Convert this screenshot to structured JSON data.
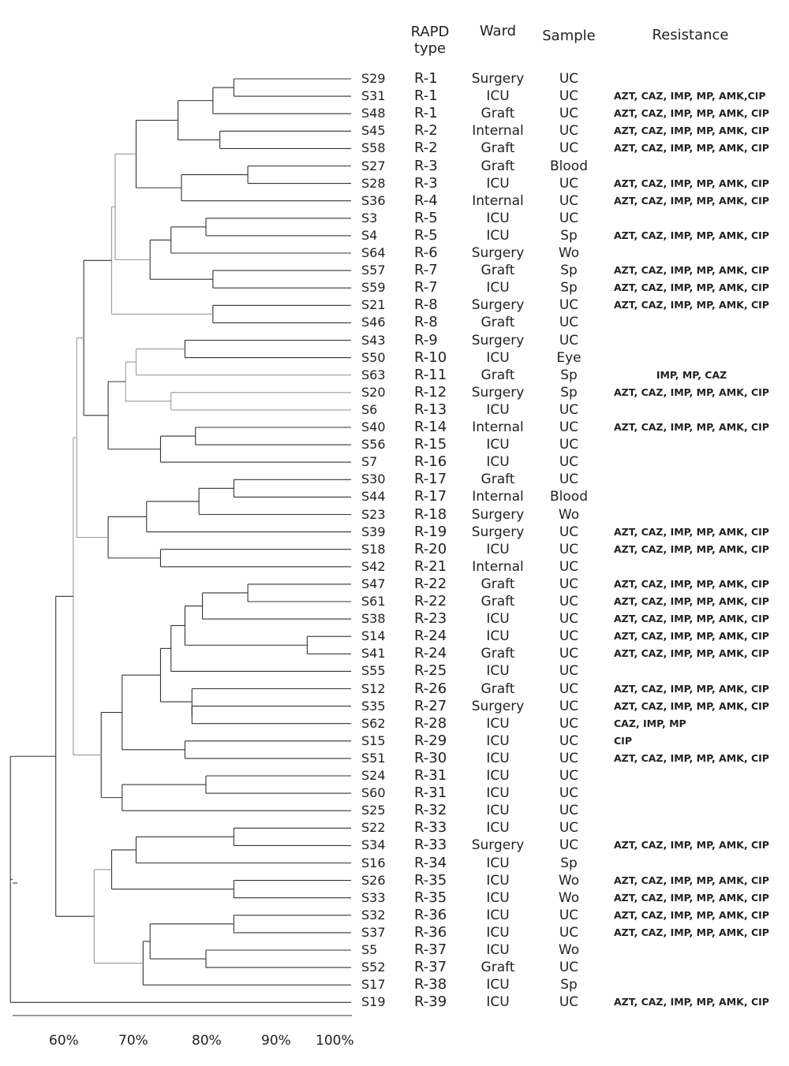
{
  "headers": {
    "rapd": "RAPD type",
    "ward": "Ward",
    "sample": "Sample",
    "resistance": "Resistance"
  },
  "axis": {
    "ticks": [
      "60%",
      "70%",
      "80%",
      "90%",
      "100%"
    ]
  },
  "rows": [
    {
      "id": "S29",
      "rapd": "R-1",
      "ward": "Surgery",
      "sample": "UC",
      "resistance": ""
    },
    {
      "id": "S31",
      "rapd": "R-1",
      "ward": "ICU",
      "sample": "UC",
      "resistance": "AZT, CAZ, IMP, MP, AMK,CIP"
    },
    {
      "id": "S48",
      "rapd": "R-1",
      "ward": "Graft",
      "sample": "UC",
      "resistance": "AZT, CAZ, IMP, MP, AMK, CIP"
    },
    {
      "id": "S45",
      "rapd": "R-2",
      "ward": "Internal",
      "sample": "UC",
      "resistance": "AZT, CAZ, IMP, MP, AMK, CIP"
    },
    {
      "id": "S58",
      "rapd": "R-2",
      "ward": "Graft",
      "sample": "UC",
      "resistance": "AZT, CAZ, IMP, MP, AMK, CIP"
    },
    {
      "id": "S27",
      "rapd": "R-3",
      "ward": "Graft",
      "sample": "Blood",
      "resistance": ""
    },
    {
      "id": "S28",
      "rapd": "R-3",
      "ward": "ICU",
      "sample": "UC",
      "resistance": "AZT, CAZ, IMP, MP, AMK, CIP"
    },
    {
      "id": "S36",
      "rapd": "R-4",
      "ward": "Internal",
      "sample": "UC",
      "resistance": "AZT, CAZ, IMP, MP, AMK, CIP"
    },
    {
      "id": "S3",
      "rapd": "R-5",
      "ward": "ICU",
      "sample": "UC",
      "resistance": ""
    },
    {
      "id": "S4",
      "rapd": "R-5",
      "ward": "ICU",
      "sample": "Sp",
      "resistance": "AZT, CAZ, IMP, MP, AMK, CIP"
    },
    {
      "id": "S64",
      "rapd": "R-6",
      "ward": "Surgery",
      "sample": "Wo",
      "resistance": ""
    },
    {
      "id": "S57",
      "rapd": "R-7",
      "ward": "Graft",
      "sample": "Sp",
      "resistance": "AZT, CAZ, IMP, MP, AMK, CIP"
    },
    {
      "id": "S59",
      "rapd": "R-7",
      "ward": "ICU",
      "sample": "Sp",
      "resistance": "AZT, CAZ, IMP, MP, AMK, CIP"
    },
    {
      "id": "S21",
      "rapd": "R-8",
      "ward": "Surgery",
      "sample": "UC",
      "resistance": "AZT, CAZ, IMP, MP, AMK, CIP"
    },
    {
      "id": "S46",
      "rapd": "R-8",
      "ward": "Graft",
      "sample": "UC",
      "resistance": ""
    },
    {
      "id": "S43",
      "rapd": "R-9",
      "ward": "Surgery",
      "sample": "UC",
      "resistance": ""
    },
    {
      "id": "S50",
      "rapd": "R-10",
      "ward": "ICU",
      "sample": "Eye",
      "resistance": ""
    },
    {
      "id": "S63",
      "rapd": "R-11",
      "ward": "Graft",
      "sample": "Sp",
      "resistance": "IMP, MP, CAZ",
      "center": true
    },
    {
      "id": "S20",
      "rapd": "R-12",
      "ward": "Surgery",
      "sample": "Sp",
      "resistance": "AZT, CAZ, IMP, MP, AMK, CIP"
    },
    {
      "id": "S6",
      "rapd": "R-13",
      "ward": "ICU",
      "sample": "UC",
      "resistance": ""
    },
    {
      "id": "S40",
      "rapd": "R-14",
      "ward": "Internal",
      "sample": "UC",
      "resistance": "AZT, CAZ, IMP, MP, AMK, CIP"
    },
    {
      "id": "S56",
      "rapd": "R-15",
      "ward": "ICU",
      "sample": "UC",
      "resistance": ""
    },
    {
      "id": "S7",
      "rapd": "R-16",
      "ward": "ICU",
      "sample": "UC",
      "resistance": ""
    },
    {
      "id": "S30",
      "rapd": "R-17",
      "ward": "Graft",
      "sample": "UC",
      "resistance": ""
    },
    {
      "id": "S44",
      "rapd": "R-17",
      "ward": "Internal",
      "sample": "Blood",
      "resistance": ""
    },
    {
      "id": "S23",
      "rapd": "R-18",
      "ward": "Surgery",
      "sample": "Wo",
      "resistance": ""
    },
    {
      "id": "S39",
      "rapd": "R-19",
      "ward": "Surgery",
      "sample": "UC",
      "resistance": "AZT, CAZ, IMP, MP, AMK, CIP"
    },
    {
      "id": "S18",
      "rapd": "R-20",
      "ward": "ICU",
      "sample": "UC",
      "resistance": "AZT, CAZ, IMP, MP, AMK, CIP"
    },
    {
      "id": "S42",
      "rapd": "R-21",
      "ward": "Internal",
      "sample": "UC",
      "resistance": ""
    },
    {
      "id": "S47",
      "rapd": "R-22",
      "ward": "Graft",
      "sample": "UC",
      "resistance": "AZT, CAZ, IMP, MP, AMK, CIP"
    },
    {
      "id": "S61",
      "rapd": "R-22",
      "ward": "Graft",
      "sample": "UC",
      "resistance": "AZT, CAZ, IMP, MP, AMK, CIP"
    },
    {
      "id": "S38",
      "rapd": "R-23",
      "ward": "ICU",
      "sample": "UC",
      "resistance": "AZT, CAZ, IMP, MP, AMK, CIP"
    },
    {
      "id": "S14",
      "rapd": "R-24",
      "ward": "ICU",
      "sample": "UC",
      "resistance": "AZT, CAZ, IMP, MP, AMK, CIP"
    },
    {
      "id": "S41",
      "rapd": "R-24",
      "ward": "Graft",
      "sample": "UC",
      "resistance": "AZT, CAZ, IMP, MP, AMK, CIP"
    },
    {
      "id": "S55",
      "rapd": "R-25",
      "ward": "ICU",
      "sample": "UC",
      "resistance": ""
    },
    {
      "id": "S12",
      "rapd": "R-26",
      "ward": "Graft",
      "sample": "UC",
      "resistance": "AZT, CAZ, IMP, MP, AMK, CIP"
    },
    {
      "id": "S35",
      "rapd": "R-27",
      "ward": "Surgery",
      "sample": "UC",
      "resistance": "AZT, CAZ, IMP, MP, AMK, CIP"
    },
    {
      "id": "S62",
      "rapd": "R-28",
      "ward": "ICU",
      "sample": "UC",
      "resistance": "CAZ, IMP, MP"
    },
    {
      "id": "S15",
      "rapd": "R-29",
      "ward": "ICU",
      "sample": "UC",
      "resistance": "CIP"
    },
    {
      "id": "S51",
      "rapd": "R-30",
      "ward": "ICU",
      "sample": "UC",
      "resistance": "AZT, CAZ, IMP, MP, AMK, CIP"
    },
    {
      "id": "S24",
      "rapd": "R-31",
      "ward": "ICU",
      "sample": "UC",
      "resistance": ""
    },
    {
      "id": "S60",
      "rapd": "R-31",
      "ward": "ICU",
      "sample": "UC",
      "resistance": ""
    },
    {
      "id": "S25",
      "rapd": "R-32",
      "ward": "ICU",
      "sample": "UC",
      "resistance": ""
    },
    {
      "id": "S22",
      "rapd": "R-33",
      "ward": "ICU",
      "sample": "UC",
      "resistance": ""
    },
    {
      "id": "S34",
      "rapd": "R-33",
      "ward": "Surgery",
      "sample": "UC",
      "resistance": "AZT, CAZ, IMP, MP, AMK, CIP"
    },
    {
      "id": "S16",
      "rapd": "R-34",
      "ward": "ICU",
      "sample": "Sp",
      "resistance": ""
    },
    {
      "id": "S26",
      "rapd": "R-35",
      "ward": "ICU",
      "sample": "Wo",
      "resistance": "AZT, CAZ, IMP, MP, AMK, CIP"
    },
    {
      "id": "S33",
      "rapd": "R-35",
      "ward": "ICU",
      "sample": "Wo",
      "resistance": "AZT, CAZ, IMP, MP, AMK, CIP"
    },
    {
      "id": "S32",
      "rapd": "R-36",
      "ward": "ICU",
      "sample": "UC",
      "resistance": "AZT, CAZ, IMP, MP, AMK, CIP"
    },
    {
      "id": "S37",
      "rapd": "R-36",
      "ward": "ICU",
      "sample": "UC",
      "resistance": "AZT, CAZ, IMP, MP, AMK, CIP"
    },
    {
      "id": "S5",
      "rapd": "R-37",
      "ward": "ICU",
      "sample": "Wo",
      "resistance": ""
    },
    {
      "id": "S52",
      "rapd": "R-37",
      "ward": "Graft",
      "sample": "UC",
      "resistance": ""
    },
    {
      "id": "S17",
      "rapd": "R-38",
      "ward": "ICU",
      "sample": "Sp",
      "resistance": ""
    },
    {
      "id": "S19",
      "rapd": "R-39",
      "ward": "ICU",
      "sample": "UC",
      "resistance": "AZT, CAZ, IMP, MP, AMK, CIP"
    }
  ],
  "dendrogram": {
    "similarity_unit": "%",
    "merges": [
      {
        "pair": [
          "S29",
          "S31"
        ],
        "similarity": 84
      },
      {
        "pair": [
          "S29-S31",
          "S48"
        ],
        "similarity": 81
      },
      {
        "pair": [
          "S45",
          "S58"
        ],
        "similarity": 82
      },
      {
        "pair": [
          "R1-cluster",
          "R2-cluster"
        ],
        "similarity": 76
      },
      {
        "pair": [
          "S27",
          "S28"
        ],
        "similarity": 86
      },
      {
        "pair": [
          "S27-S28",
          "S36"
        ],
        "similarity": 76.5
      },
      {
        "pair": [
          "S29..S58",
          "S27..S36"
        ],
        "similarity": 70
      },
      {
        "pair": [
          "S3",
          "S4"
        ],
        "similarity": 80
      },
      {
        "pair": [
          "S3-S4",
          "S64"
        ],
        "similarity": 75
      },
      {
        "pair": [
          "S57",
          "S59"
        ],
        "similarity": 81
      },
      {
        "pair": [
          "S3..S64",
          "S57-S59"
        ],
        "similarity": 72
      },
      {
        "pair": [
          "S29..S36",
          "S3..S59"
        ],
        "similarity": 67
      },
      {
        "pair": [
          "S21",
          "S46"
        ],
        "similarity": 81
      },
      {
        "pair": [
          "upper-block",
          "S21-S46"
        ],
        "similarity": 66.5
      },
      {
        "pair": [
          "S43",
          "S50"
        ],
        "similarity": 77
      },
      {
        "pair": [
          "S43-S50",
          "S63"
        ],
        "similarity": 70
      },
      {
        "pair": [
          "S20",
          "S6"
        ],
        "similarity": 75
      },
      {
        "pair": [
          "S43..S63",
          "S20-S6"
        ],
        "similarity": 68.5
      },
      {
        "pair": [
          "S40",
          "S56"
        ],
        "similarity": 78.5
      },
      {
        "pair": [
          "S40-S56",
          "S7"
        ],
        "similarity": 73.5
      },
      {
        "pair": [
          "S43..S6",
          "S40..S7"
        ],
        "similarity": 66
      },
      {
        "pair": [
          "upper-block",
          "S43..S7"
        ],
        "similarity": 62.5
      },
      {
        "pair": [
          "S30",
          "S44"
        ],
        "similarity": 84
      },
      {
        "pair": [
          "S30-S44",
          "S23"
        ],
        "similarity": 79
      },
      {
        "pair": [
          "S30..S23",
          "S39"
        ],
        "similarity": 71.5
      },
      {
        "pair": [
          "S18",
          "S42"
        ],
        "similarity": 73.5
      },
      {
        "pair": [
          "S30..S39",
          "S18-S42"
        ],
        "similarity": 66
      },
      {
        "pair": [
          "upper",
          "S30..S42"
        ],
        "similarity": 61.5
      },
      {
        "pair": [
          "S47",
          "S61"
        ],
        "similarity": 86
      },
      {
        "pair": [
          "S47-S61",
          "S38"
        ],
        "similarity": 79.5
      },
      {
        "pair": [
          "S14",
          "S41"
        ],
        "similarity": 94.5
      },
      {
        "pair": [
          "S47..S38",
          "S14-S41"
        ],
        "similarity": 77
      },
      {
        "pair": [
          "S47..S41",
          "S55"
        ],
        "similarity": 75
      },
      {
        "pair": [
          "S35",
          "S62"
        ],
        "similarity": 78
      },
      {
        "pair": [
          "S12",
          "S35-S62"
        ],
        "similarity": 78
      },
      {
        "pair": [
          "S47..S55",
          "S12..S62"
        ],
        "similarity": 73.5
      },
      {
        "pair": [
          "S15",
          "S51"
        ],
        "similarity": 77
      },
      {
        "pair": [
          "S47..S62",
          "S15-S51"
        ],
        "similarity": 68
      },
      {
        "pair": [
          "S24",
          "S60"
        ],
        "similarity": 80
      },
      {
        "pair": [
          "S24-S60",
          "S25"
        ],
        "similarity": 68
      },
      {
        "pair": [
          "S47..S51",
          "S24..S25"
        ],
        "similarity": 65
      },
      {
        "pair": [
          "upper",
          "S47..S25"
        ],
        "similarity": 61
      },
      {
        "pair": [
          "S22",
          "S34"
        ],
        "similarity": 84
      },
      {
        "pair": [
          "S22-S34",
          "S16"
        ],
        "similarity": 70
      },
      {
        "pair": [
          "S26",
          "S33"
        ],
        "similarity": 84
      },
      {
        "pair": [
          "S22..S16",
          "S26-S33"
        ],
        "similarity": 66.5
      },
      {
        "pair": [
          "S32",
          "S37"
        ],
        "similarity": 84
      },
      {
        "pair": [
          "S5",
          "S52"
        ],
        "similarity": 80
      },
      {
        "pair": [
          "S32-S37",
          "S5-S52"
        ],
        "similarity": 72
      },
      {
        "pair": [
          "S32..S52",
          "S17"
        ],
        "similarity": 71
      },
      {
        "pair": [
          "S22..S33",
          "S32..S17"
        ],
        "similarity": 64
      },
      {
        "pair": [
          "upper-all",
          "lower-all"
        ],
        "similarity": 58.5
      },
      {
        "pair": [
          "all",
          "S19"
        ],
        "similarity": 52
      }
    ]
  }
}
